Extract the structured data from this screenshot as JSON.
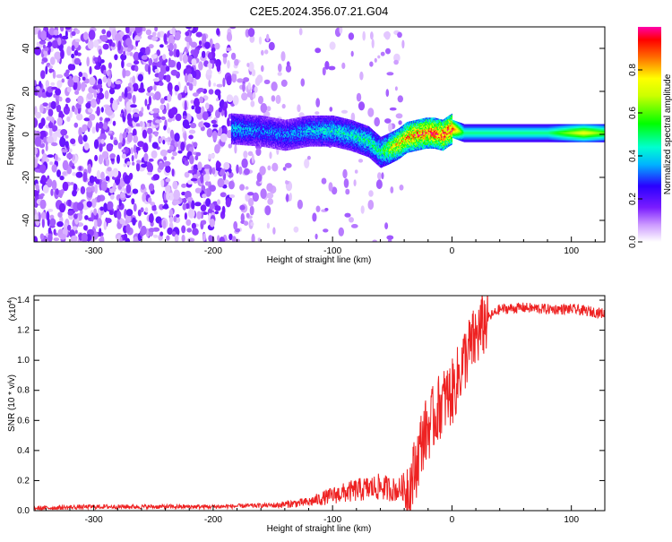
{
  "title": "C2E5.2024.356.07.21.G04",
  "chart_data": [
    {
      "type": "heatmap",
      "xlabel": "Height of straight line (km)",
      "ylabel": "Frequency (Hz)",
      "xlim": [
        -350,
        128
      ],
      "ylim": [
        -50,
        50
      ],
      "xticks": [
        -300,
        -200,
        -100,
        0,
        100
      ],
      "yticks": [
        -40,
        -20,
        0,
        20,
        40
      ],
      "colorbar": {
        "label": "Normalized spectral amplitude",
        "range": [
          0,
          1
        ],
        "ticks": [
          0.0,
          0.2,
          0.4,
          0.6,
          0.8
        ]
      },
      "signal_trace": {
        "x": [
          -185,
          -160,
          -140,
          -120,
          -100,
          -85,
          -70,
          -60,
          -52,
          -45,
          -38,
          -30,
          -22,
          -15,
          -8,
          -3,
          0,
          10,
          40,
          80,
          110,
          128
        ],
        "y": [
          3,
          2,
          0,
          2,
          2,
          0,
          -3,
          -8,
          -6,
          -4,
          -1,
          0,
          1,
          1,
          0,
          2,
          3,
          1,
          1,
          1,
          1,
          1
        ],
        "amplitude": [
          0.4,
          0.35,
          0.35,
          0.4,
          0.45,
          0.45,
          0.5,
          0.5,
          0.7,
          0.8,
          0.85,
          0.9,
          0.9,
          0.95,
          0.95,
          1.0,
          0.95,
          0.5,
          0.5,
          0.5,
          0.75,
          0.6
        ]
      }
    },
    {
      "type": "line",
      "xlabel": "Height of straight line (km)",
      "ylabel": "SNR (10 * v/v)",
      "y_multiplier": "(x10",
      "y_multiplier_exp": "4",
      "y_multiplier_close": ")",
      "xlim": [
        -350,
        128
      ],
      "ylim": [
        0,
        1.43
      ],
      "xticks": [
        -300,
        -200,
        -100,
        0,
        100
      ],
      "yticks": [
        0.0,
        0.2,
        0.4,
        0.6,
        0.8,
        1.0,
        1.2,
        1.4
      ],
      "series": [
        {
          "color": "#ee2222",
          "x": [
            -350,
            -300,
            -250,
            -200,
            -150,
            -120,
            -100,
            -80,
            -60,
            -45,
            -35,
            -30,
            -25,
            -20,
            -15,
            -10,
            -5,
            0,
            5,
            10,
            15,
            20,
            25,
            30,
            40,
            60,
            80,
            100,
            110,
            120,
            128
          ],
          "y": [
            0.01,
            0.02,
            0.02,
            0.02,
            0.03,
            0.05,
            0.09,
            0.12,
            0.14,
            0.12,
            0.17,
            0.3,
            0.48,
            0.55,
            0.62,
            0.7,
            0.75,
            0.78,
            0.88,
            1.0,
            1.08,
            1.15,
            1.22,
            1.28,
            1.34,
            1.35,
            1.34,
            1.34,
            1.33,
            1.32,
            1.31
          ]
        }
      ]
    }
  ]
}
